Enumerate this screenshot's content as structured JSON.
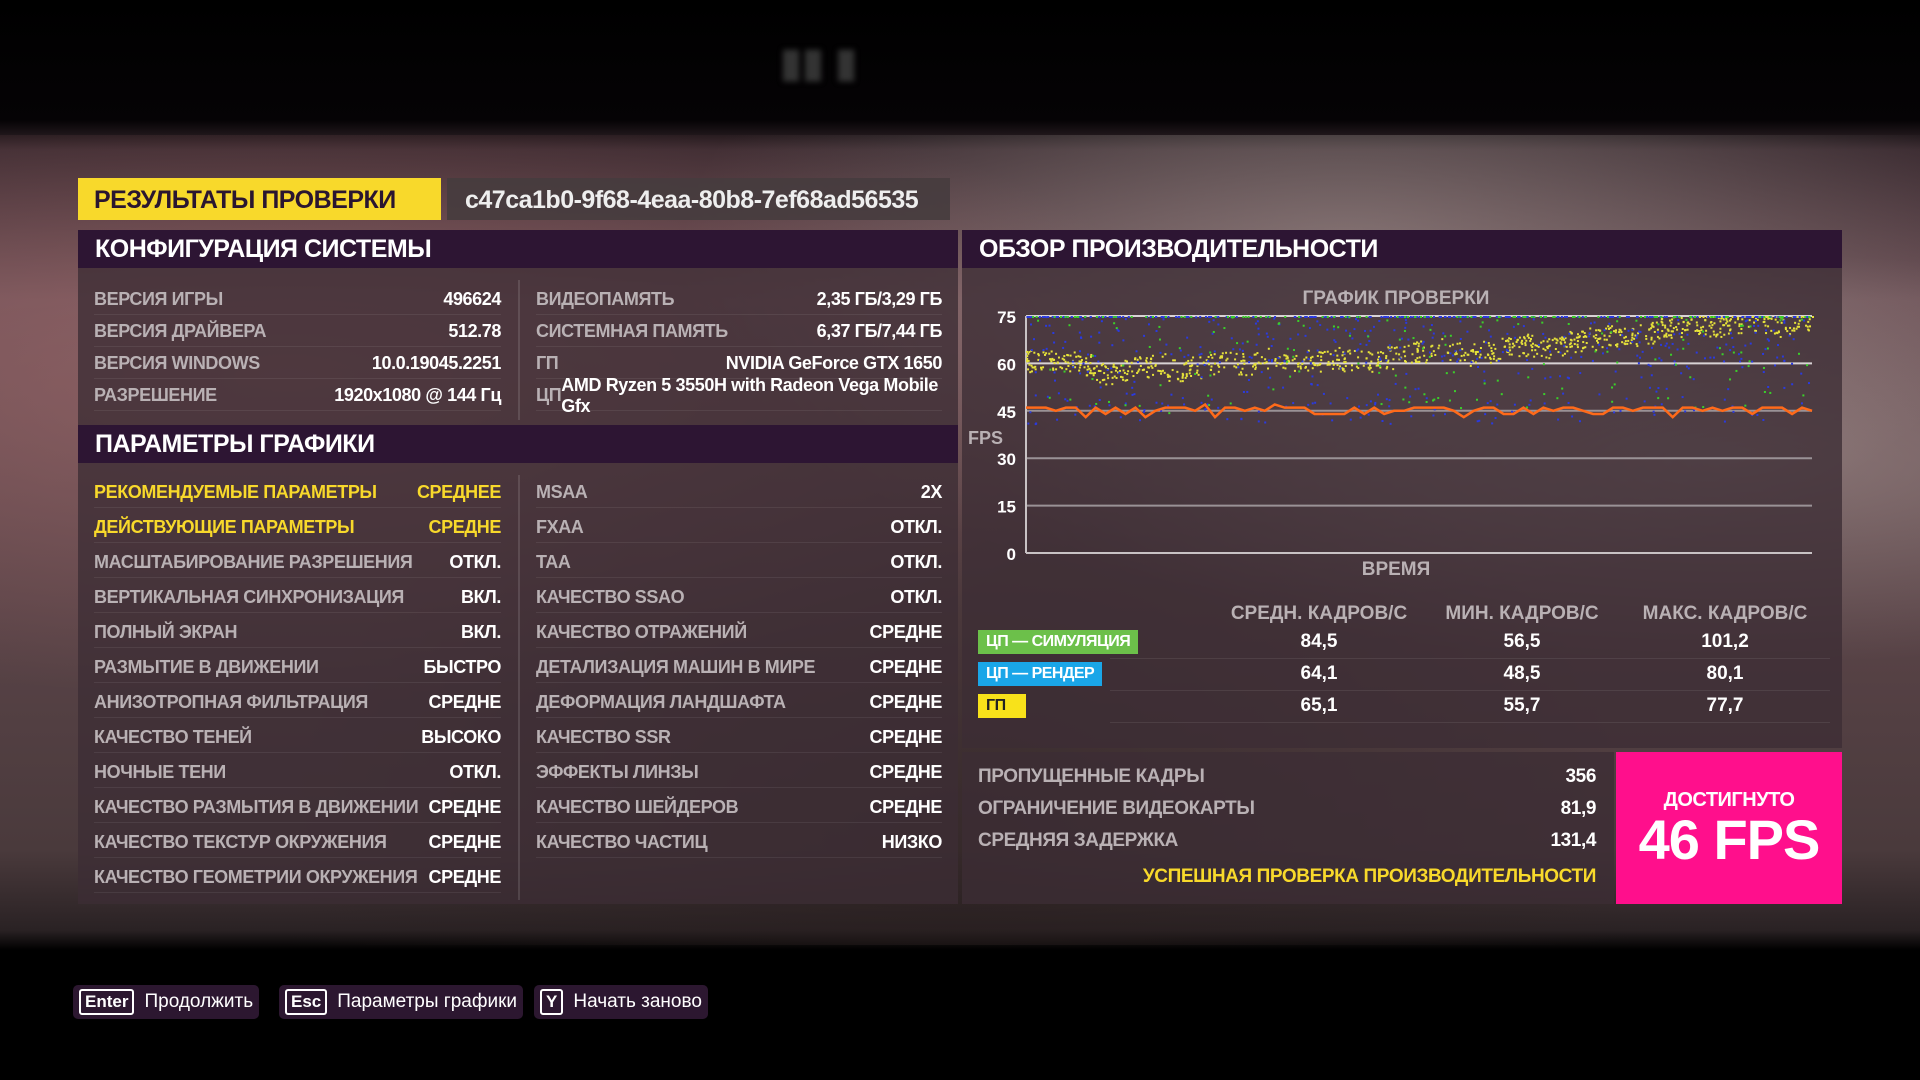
{
  "header": {
    "title": "РЕЗУЛЬТАТЫ ПРОВЕРКИ",
    "run_id": "c47ca1b0-9f68-4eaa-80b8-7ef68ad56535"
  },
  "system": {
    "title": "КОНФИГУРАЦИЯ СИСТЕМЫ",
    "left": [
      {
        "k": "ВЕРСИЯ ИГРЫ",
        "v": "496624"
      },
      {
        "k": "ВЕРСИЯ ДРАЙВЕРА",
        "v": "512.78"
      },
      {
        "k": "ВЕРСИЯ WINDOWS",
        "v": "10.0.19045.2251"
      },
      {
        "k": "РАЗРЕШЕНИЕ",
        "v": "1920x1080 @ 144 Гц"
      }
    ],
    "right": [
      {
        "k": "ВИДЕОПАМЯТЬ",
        "v": "2,35 ГБ/3,29 ГБ"
      },
      {
        "k": "СИСТЕМНАЯ ПАМЯТЬ",
        "v": "6,37 ГБ/7,44 ГБ"
      },
      {
        "k": "ГП",
        "v": "NVIDIA GeForce GTX 1650"
      },
      {
        "k": "ЦП",
        "v": "AMD Ryzen 5 3550H with Radeon Vega Mobile Gfx"
      }
    ]
  },
  "graphics": {
    "title": "ПАРАМЕТРЫ ГРАФИКИ",
    "left": [
      {
        "k": "РЕКОМЕНДУЕМЫЕ ПАРАМЕТРЫ",
        "v": "СРЕДНЕЕ"
      },
      {
        "k": "ДЕЙСТВУЮЩИЕ ПАРАМЕТРЫ",
        "v": "СРЕДНЕ"
      },
      {
        "k": "МАСШТАБИРОВАНИЕ РАЗРЕШЕНИЯ",
        "v": "ОТКЛ."
      },
      {
        "k": "ВЕРТИКАЛЬНАЯ СИНХРОНИЗАЦИЯ",
        "v": "ВКЛ."
      },
      {
        "k": "ПОЛНЫЙ ЭКРАН",
        "v": "ВКЛ."
      },
      {
        "k": "РАЗМЫТИЕ В ДВИЖЕНИИ",
        "v": "БЫСТРО"
      },
      {
        "k": "АНИЗОТРОПНАЯ ФИЛЬТРАЦИЯ",
        "v": "СРЕДНЕ"
      },
      {
        "k": "КАЧЕСТВО ТЕНЕЙ",
        "v": "ВЫСОКО"
      },
      {
        "k": "НОЧНЫЕ ТЕНИ",
        "v": "ОТКЛ."
      },
      {
        "k": "КАЧЕСТВО РАЗМЫТИЯ В ДВИЖЕНИИ",
        "v": "СРЕДНЕ"
      },
      {
        "k": "КАЧЕСТВО ТЕКСТУР ОКРУЖЕНИЯ",
        "v": "СРЕДНЕ"
      },
      {
        "k": "КАЧЕСТВО ГЕОМЕТРИИ ОКРУЖЕНИЯ",
        "v": "СРЕДНЕ"
      }
    ],
    "right": [
      {
        "k": "MSAA",
        "v": "2X"
      },
      {
        "k": "FXAA",
        "v": "ОТКЛ."
      },
      {
        "k": "TAA",
        "v": "ОТКЛ."
      },
      {
        "k": "КАЧЕСТВО SSAO",
        "v": "ОТКЛ."
      },
      {
        "k": "КАЧЕСТВО ОТРАЖЕНИЙ",
        "v": "СРЕДНЕ"
      },
      {
        "k": "ДЕТАЛИЗАЦИЯ МАШИН В МИРЕ",
        "v": "СРЕДНЕ"
      },
      {
        "k": "ДЕФОРМАЦИЯ ЛАНДШАФТА",
        "v": "СРЕДНЕ"
      },
      {
        "k": "КАЧЕСТВО SSR",
        "v": "СРЕДНЕ"
      },
      {
        "k": "ЭФФЕКТЫ ЛИНЗЫ",
        "v": "СРЕДНЕ"
      },
      {
        "k": "КАЧЕСТВО ШЕЙДЕРОВ",
        "v": "СРЕДНЕ"
      },
      {
        "k": "КАЧЕСТВО ЧАСТИЦ",
        "v": "НИЗКО"
      }
    ]
  },
  "performance": {
    "title": "ОБЗОР ПРОИЗВОДИТЕЛЬНОСТИ",
    "table": {
      "headers": [
        "СРЕДН. КАДРОВ/С",
        "МИН. КАДРОВ/С",
        "МАКС. КАДРОВ/С"
      ],
      "rows": [
        {
          "label": "ЦП — СИМУЛЯЦИЯ",
          "color": "#6cc04a",
          "text_color": "#fff",
          "values": [
            "84,5",
            "56,5",
            "101,2"
          ]
        },
        {
          "label": "ЦП — РЕНДЕР",
          "color": "#1aa6e8",
          "text_color": "#fff",
          "values": [
            "64,1",
            "48,5",
            "80,1"
          ]
        },
        {
          "label": "ГП",
          "color": "#f8e21a",
          "text_color": "#222",
          "values": [
            "65,1",
            "55,7",
            "77,7"
          ]
        }
      ]
    },
    "stats": [
      {
        "k": "ПРОПУЩЕННЫЕ КАДРЫ",
        "v": "356"
      },
      {
        "k": "ОГРАНИЧЕНИЕ ВИДЕОКАРТЫ",
        "v": "81,9"
      },
      {
        "k": "СРЕДНЯЯ ЗАДЕРЖКА",
        "v": "131,4"
      }
    ],
    "result": "УСПЕШНАЯ ПРОВЕРКА ПРОИЗВОДИТЕЛЬНОСТИ",
    "achieved_label": "ДОСТИГНУТО",
    "achieved_value": "46 FPS",
    "achieved_color": "#ff0f8c"
  },
  "chart_data": {
    "type": "scatter",
    "title": "ГРАФИК ПРОВЕРКИ",
    "xlabel": "ВРЕМЯ",
    "ylabel": "FPS",
    "ylim": [
      0,
      75
    ],
    "yticks": [
      0,
      15,
      30,
      45,
      60,
      75
    ],
    "grid": true,
    "series": [
      {
        "color": "#ff6a1a",
        "kind": "line",
        "values": [
          46,
          46,
          46,
          45,
          46,
          46,
          43,
          46,
          44,
          46,
          44,
          46,
          43,
          45,
          46,
          46,
          46,
          45,
          47,
          43,
          46,
          46,
          45,
          46,
          45,
          47,
          46,
          46,
          46,
          44,
          44,
          44,
          44,
          46,
          44,
          46,
          44,
          45,
          45,
          46,
          46,
          46,
          46,
          45,
          43,
          45,
          46,
          46,
          44,
          44,
          46,
          44,
          46,
          45,
          46,
          46,
          45,
          44,
          44,
          46,
          46,
          45,
          46,
          46,
          46,
          43,
          46,
          46,
          45,
          46,
          45,
          46,
          46,
          44,
          46,
          46,
          46,
          44,
          46,
          45
        ]
      },
      {
        "color": "#e6e23a",
        "kind": "scatter",
        "values": [
          61,
          61,
          61,
          60,
          57,
          58,
          59,
          60,
          58,
          59,
          60,
          61,
          60,
          62,
          61,
          60,
          61,
          62,
          61,
          61,
          62,
          63,
          64,
          65,
          64,
          63,
          64,
          65,
          66,
          65,
          66,
          67,
          68,
          69,
          68,
          70,
          71,
          72,
          73,
          72,
          73,
          74,
          73,
          72,
          74
        ]
      },
      {
        "color": "#2a3ae0",
        "kind": "scatter",
        "values": [
          75,
          72,
          68,
          64,
          60,
          55,
          50,
          47,
          44,
          70,
          66,
          62
        ]
      },
      {
        "color": "#3ad02a",
        "kind": "scatter",
        "values": [
          75,
          74,
          73,
          70,
          66,
          60,
          55,
          50,
          47
        ]
      }
    ]
  },
  "footer": [
    {
      "key": "Enter",
      "label": "Продолжить"
    },
    {
      "key": "Esc",
      "label": "Параметры графики"
    },
    {
      "key": "Y",
      "label": "Начать заново"
    }
  ]
}
